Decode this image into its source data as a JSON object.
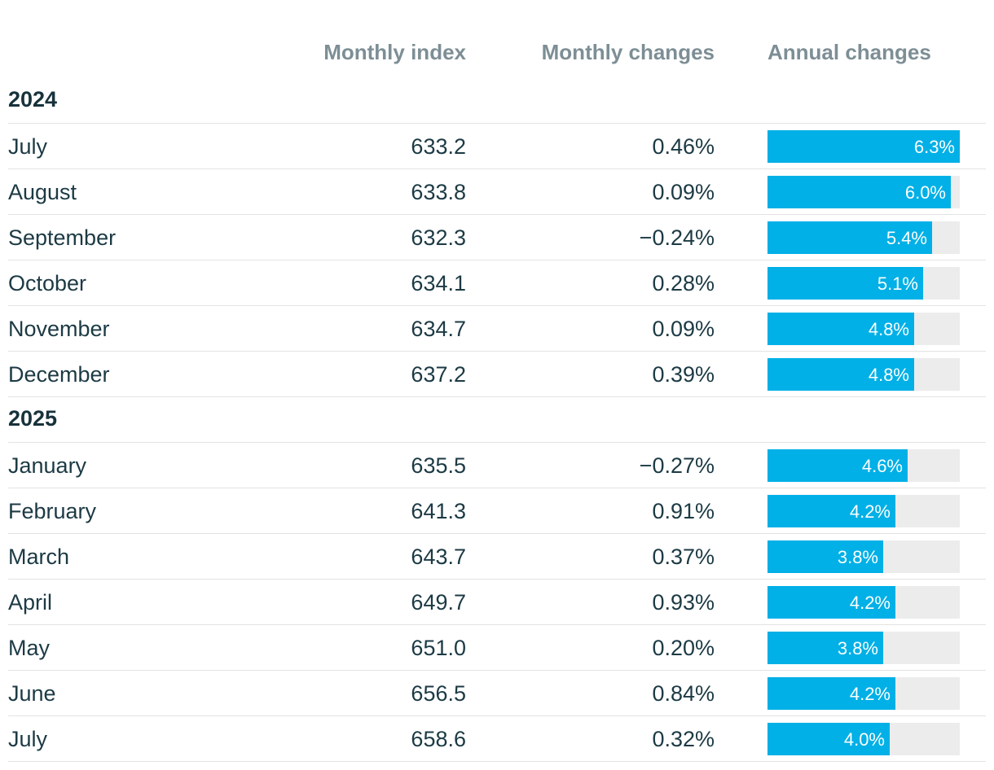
{
  "chart_data": {
    "type": "table",
    "columns": {
      "month": "",
      "index": "Monthly index",
      "monthly_change": "Monthly changes",
      "annual_change": "Annual changes"
    },
    "annual_bar_max": 6.3,
    "accent_color": "#00b0e6",
    "track_color": "#ececec",
    "groups": [
      {
        "year": "2024",
        "rows": [
          {
            "month": "July",
            "index": "633.2",
            "monthly": "0.46%",
            "annual": 6.3,
            "annual_label": "6.3%"
          },
          {
            "month": "August",
            "index": "633.8",
            "monthly": "0.09%",
            "annual": 6.0,
            "annual_label": "6.0%"
          },
          {
            "month": "September",
            "index": "632.3",
            "monthly": "−0.24%",
            "annual": 5.4,
            "annual_label": "5.4%"
          },
          {
            "month": "October",
            "index": "634.1",
            "monthly": "0.28%",
            "annual": 5.1,
            "annual_label": "5.1%"
          },
          {
            "month": "November",
            "index": "634.7",
            "monthly": "0.09%",
            "annual": 4.8,
            "annual_label": "4.8%"
          },
          {
            "month": "December",
            "index": "637.2",
            "monthly": "0.39%",
            "annual": 4.8,
            "annual_label": "4.8%"
          }
        ]
      },
      {
        "year": "2025",
        "rows": [
          {
            "month": "January",
            "index": "635.5",
            "monthly": "−0.27%",
            "annual": 4.6,
            "annual_label": "4.6%"
          },
          {
            "month": "February",
            "index": "641.3",
            "monthly": "0.91%",
            "annual": 4.2,
            "annual_label": "4.2%"
          },
          {
            "month": "March",
            "index": "643.7",
            "monthly": "0.37%",
            "annual": 3.8,
            "annual_label": "3.8%"
          },
          {
            "month": "April",
            "index": "649.7",
            "monthly": "0.93%",
            "annual": 4.2,
            "annual_label": "4.2%"
          },
          {
            "month": "May",
            "index": "651.0",
            "monthly": "0.20%",
            "annual": 3.8,
            "annual_label": "3.8%"
          },
          {
            "month": "June",
            "index": "656.5",
            "monthly": "0.84%",
            "annual": 4.2,
            "annual_label": "4.2%"
          },
          {
            "month": "July",
            "index": "658.6",
            "monthly": "0.32%",
            "annual": 4.0,
            "annual_label": "4.0%"
          }
        ]
      }
    ]
  }
}
